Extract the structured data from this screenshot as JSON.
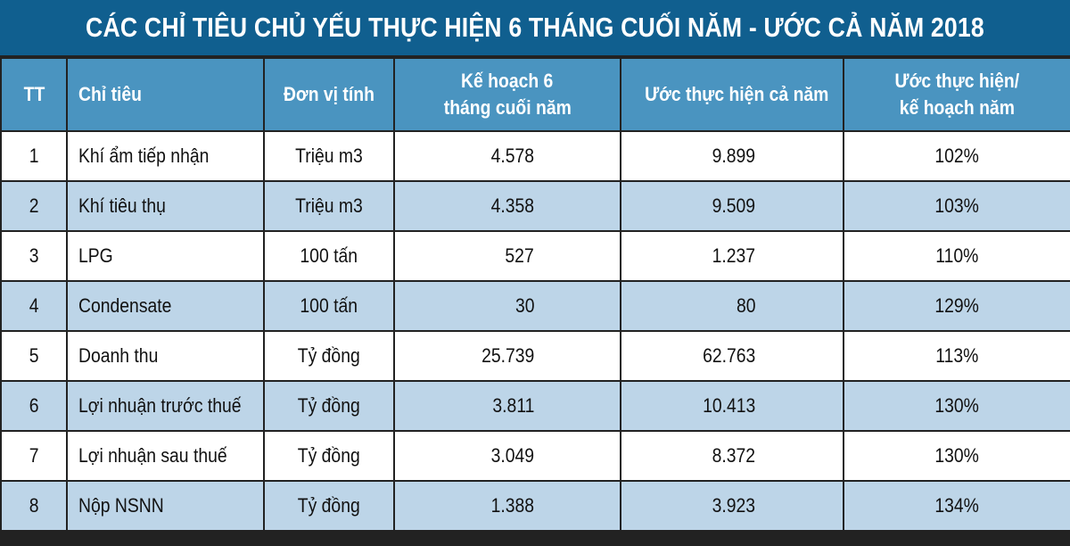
{
  "title": "CÁC CHỈ TIÊU CHỦ YẾU THỰC HIỆN 6 THÁNG CUỐI NĂM - ƯỚC CẢ NĂM 2018",
  "colors": {
    "title_bg": "#105f8f",
    "header_bg": "#4a94c0",
    "alt_row_bg": "#bdd5e8",
    "border": "#222222"
  },
  "headers": {
    "tt": "TT",
    "chi_tieu": "Chỉ tiêu",
    "don_vi": "Đơn vị tính",
    "ke_hoach_1": "Kế hoạch 6",
    "ke_hoach_2": "tháng cuối năm",
    "uoc": "Ước thực hiện cả năm",
    "ty_le_1": "Ước thực hiện/",
    "ty_le_2": "kế hoạch năm"
  },
  "rows": [
    {
      "tt": "1",
      "chi_tieu": "Khí ẩm tiếp nhận",
      "don_vi": "Triệu m3",
      "ke_hoach": "4.578",
      "uoc": "9.899",
      "ty_le": "102%"
    },
    {
      "tt": "2",
      "chi_tieu": "Khí tiêu thụ",
      "don_vi": "Triệu m3",
      "ke_hoach": "4.358",
      "uoc": "9.509",
      "ty_le": "103%"
    },
    {
      "tt": "3",
      "chi_tieu": "LPG",
      "don_vi": "100 tấn",
      "ke_hoach": "527",
      "uoc": "1.237",
      "ty_le": "110%"
    },
    {
      "tt": "4",
      "chi_tieu": "Condensate",
      "don_vi": "100 tấn",
      "ke_hoach": "30",
      "uoc": "80",
      "ty_le": "129%"
    },
    {
      "tt": "5",
      "chi_tieu": "Doanh thu",
      "don_vi": "Tỷ đồng",
      "ke_hoach": "25.739",
      "uoc": "62.763",
      "ty_le": "113%"
    },
    {
      "tt": "6",
      "chi_tieu": "Lợi nhuận trước thuế",
      "don_vi": "Tỷ đồng",
      "ke_hoach": "3.811",
      "uoc": "10.413",
      "ty_le": "130%"
    },
    {
      "tt": "7",
      "chi_tieu": "Lợi nhuận sau thuế",
      "don_vi": "Tỷ đồng",
      "ke_hoach": "3.049",
      "uoc": "8.372",
      "ty_le": "130%"
    },
    {
      "tt": "8",
      "chi_tieu": "Nộp NSNN",
      "don_vi": "Tỷ đồng",
      "ke_hoach": "1.388",
      "uoc": "3.923",
      "ty_le": "134%"
    }
  ]
}
